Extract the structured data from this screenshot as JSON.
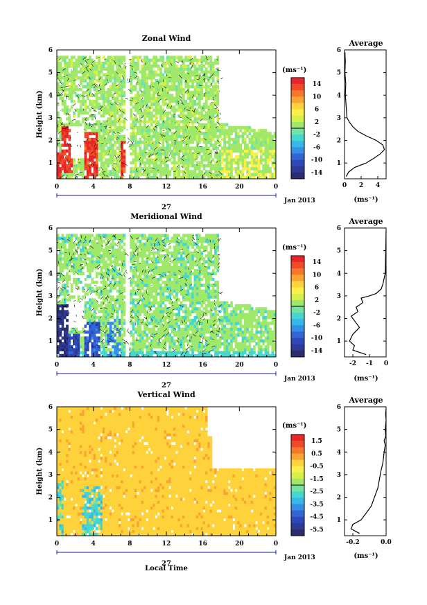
{
  "figure": {
    "xlabel": "Local Time",
    "date_tick": "27",
    "date_label": "Jan 2013",
    "units_label": "(ms⁻¹)"
  },
  "chart_data": [
    {
      "type": "heatmap",
      "title": "Zonal Wind",
      "ylabel": "Height (km)",
      "xlabel": "Local Time",
      "xlim": [
        0,
        24
      ],
      "ylim": [
        0.3,
        6
      ],
      "x_ticks": [
        "0",
        "4",
        "8",
        "12",
        "16",
        "20",
        "0"
      ],
      "y_ticks": [
        "1",
        "2",
        "3",
        "4",
        "5",
        "6"
      ],
      "colorbar": {
        "label": "(ms⁻¹)",
        "range": [
          -15,
          15
        ],
        "ticks": [
          "14",
          "10",
          "6",
          "2",
          "-2",
          "-6",
          "-10",
          "-14"
        ]
      },
      "description_values": {
        "lowlevel_morning_max": 14,
        "typical": 1
      },
      "profile": {
        "title": "Average",
        "xlabel": "(ms⁻¹)",
        "xlim": [
          0,
          5
        ],
        "x_ticks": [
          "0",
          "2",
          "4"
        ],
        "x": [
          0.2,
          0.5,
          1.2,
          2.6,
          3.5,
          4.3,
          4.8,
          4.6,
          3.8,
          2.6,
          1.6,
          1.0,
          0.6,
          0.3,
          0.2,
          0.1,
          0.15,
          0.05,
          0.1,
          0.05
        ],
        "y": [
          0.4,
          0.6,
          0.8,
          1.0,
          1.2,
          1.4,
          1.6,
          1.8,
          2.0,
          2.2,
          2.4,
          2.6,
          2.8,
          3.0,
          3.5,
          4.0,
          4.5,
          5.0,
          5.5,
          5.9
        ]
      }
    },
    {
      "type": "heatmap",
      "title": "Meridional Wind",
      "ylabel": "Height (km)",
      "xlabel": "Local Time",
      "xlim": [
        0,
        24
      ],
      "ylim": [
        0.3,
        6
      ],
      "x_ticks": [
        "0",
        "4",
        "8",
        "12",
        "16",
        "20",
        "0"
      ],
      "y_ticks": [
        "1",
        "2",
        "3",
        "4",
        "5",
        "6"
      ],
      "colorbar": {
        "label": "(ms⁻¹)",
        "range": [
          -15,
          15
        ],
        "ticks": [
          "14",
          "10",
          "6",
          "2",
          "-2",
          "-6",
          "-10",
          "-14"
        ]
      },
      "profile": {
        "title": "Average",
        "xlabel": "(ms⁻¹)",
        "xlim": [
          -2.5,
          0
        ],
        "x_ticks": [
          "-2",
          "-1",
          "0"
        ],
        "x": [
          -1.2,
          -2.0,
          -1.9,
          -2.2,
          -2.0,
          -1.6,
          -1.9,
          -2.1,
          -1.7,
          -1.8,
          -1.4,
          -1.5,
          -1.0,
          -0.6,
          -0.3,
          -0.2,
          -0.05,
          -0.02,
          0.0
        ],
        "y": [
          0.4,
          0.6,
          0.8,
          1.0,
          1.3,
          1.6,
          1.9,
          2.1,
          2.3,
          2.5,
          2.7,
          2.9,
          3.0,
          3.1,
          3.3,
          3.5,
          4.0,
          5.0,
          5.9
        ]
      }
    },
    {
      "type": "heatmap",
      "title": "Vertical Wind",
      "ylabel": "Height (km)",
      "xlabel": "Local Time",
      "xlim": [
        0,
        24
      ],
      "ylim": [
        0.3,
        6
      ],
      "x_ticks": [
        "0",
        "4",
        "8",
        "12",
        "16",
        "20",
        "0"
      ],
      "y_ticks": [
        "1",
        "2",
        "3",
        "4",
        "5",
        "6"
      ],
      "colorbar": {
        "label": "(ms⁻¹)",
        "range": [
          -6,
          2
        ],
        "ticks": [
          "1.5",
          "0.5",
          "-0.5",
          "-1.5",
          "-2.5",
          "-3.5",
          "-4.5",
          "-5.5"
        ]
      },
      "profile": {
        "title": "Average",
        "xlabel": "(ms⁻¹)",
        "xlim": [
          -0.25,
          0
        ],
        "x_ticks": [
          "-0.2",
          "0.0"
        ],
        "x": [
          -0.16,
          -0.21,
          -0.2,
          -0.15,
          -0.12,
          -0.09,
          -0.07,
          -0.05,
          -0.04,
          -0.03,
          -0.02,
          -0.015,
          -0.01,
          -0.005,
          -0.012,
          -0.002,
          -0.005,
          0.0,
          -0.003,
          0.0
        ],
        "y": [
          0.4,
          0.6,
          0.8,
          1.0,
          1.3,
          1.6,
          2.0,
          2.4,
          2.8,
          3.2,
          3.5,
          3.8,
          4.1,
          4.3,
          4.5,
          4.7,
          5.0,
          5.4,
          5.7,
          5.9
        ]
      }
    }
  ]
}
